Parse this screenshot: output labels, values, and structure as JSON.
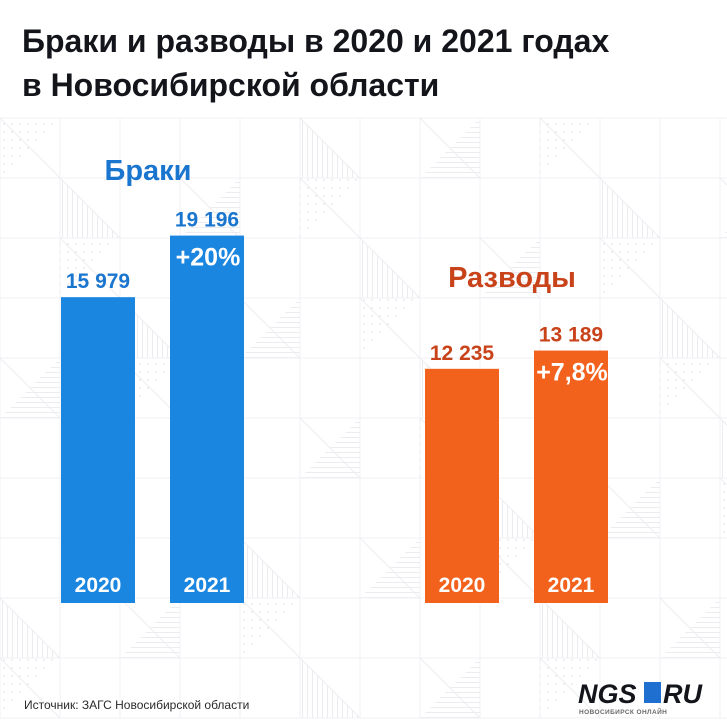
{
  "title_line1": "Браки и разводы в 2020 и 2021 годах",
  "title_line2": "в Новосибирской области",
  "source": "Источник: ЗАГС Новосибирской области",
  "logo": {
    "ngs": "NGS",
    "ru": "RU",
    "sub": "НОВОСИБИРСК ОНЛАЙН"
  },
  "colors": {
    "marriages": "#1a86e0",
    "divorces": "#f2621d",
    "marriages_title": "#1a75cf",
    "divorces_title": "#c9431a",
    "logo_blue": "#1f6fd1",
    "logo_dark": "#13151b"
  },
  "chart_data": [
    {
      "type": "bar",
      "title": "Браки",
      "categories": [
        "2020",
        "2021"
      ],
      "values": [
        15979,
        19196
      ],
      "value_labels": [
        "15 979",
        "19 196"
      ],
      "change_label": "+20%"
    },
    {
      "type": "bar",
      "title": "Разводы",
      "categories": [
        "2020",
        "2021"
      ],
      "values": [
        12235,
        13189
      ],
      "value_labels": [
        "12 235",
        "13 189"
      ],
      "change_label": "+7,8%"
    }
  ]
}
